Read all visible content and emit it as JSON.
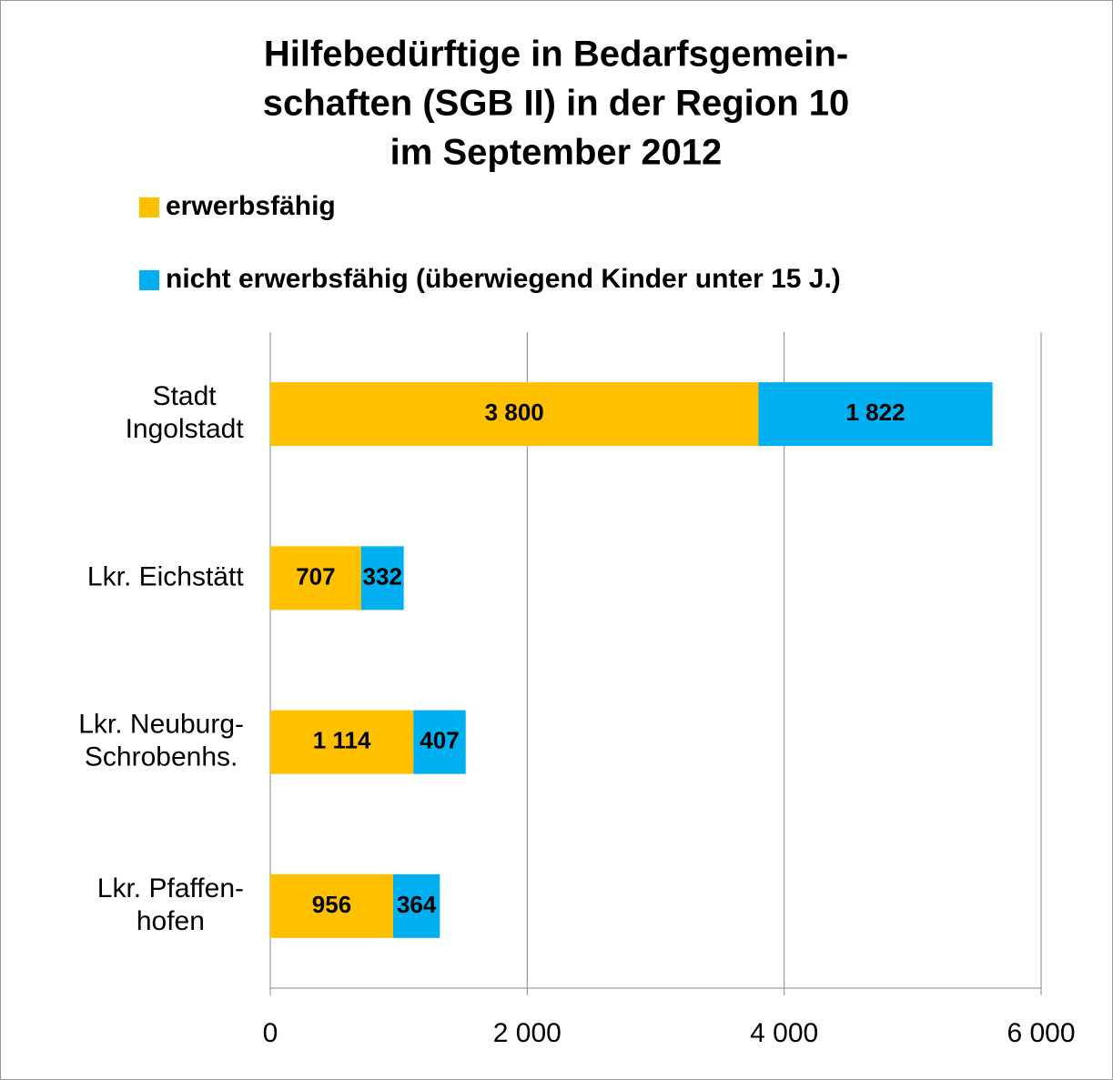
{
  "chart_data": {
    "type": "stacked-bar-horizontal",
    "title": [
      "Hilfebedürftige in Bedarfsgemein-",
      "schaften (SGB II)  in der Region 10",
      "im September 2012"
    ],
    "categories": [
      "Stadt\nIngolstadt",
      "Lkr. Eichstätt",
      "Lkr. Neuburg-\nSchrobenhs.",
      "Lkr. Pfaffen-\nhofen"
    ],
    "series": [
      {
        "name": "erwerbsfähig",
        "color": "#FFC000",
        "values": [
          3800,
          707,
          1114,
          956
        ],
        "value_labels": [
          "3 800",
          "707",
          "1 114",
          "956"
        ]
      },
      {
        "name": "nicht erwerbsfähig (überwiegend Kinder unter 15 J.)",
        "color": "#00B0F0",
        "values": [
          1822,
          332,
          407,
          364
        ],
        "value_labels": [
          "1 822",
          "332",
          "407",
          "364"
        ]
      }
    ],
    "xlim": [
      0,
      6000
    ],
    "xticks": [
      0,
      {
        "value": 2000,
        "label": "2 000"
      },
      {
        "value": 4000,
        "label": "4 000"
      },
      {
        "value": 6000,
        "label": "6 000"
      }
    ],
    "grid": true,
    "legend": "top"
  }
}
